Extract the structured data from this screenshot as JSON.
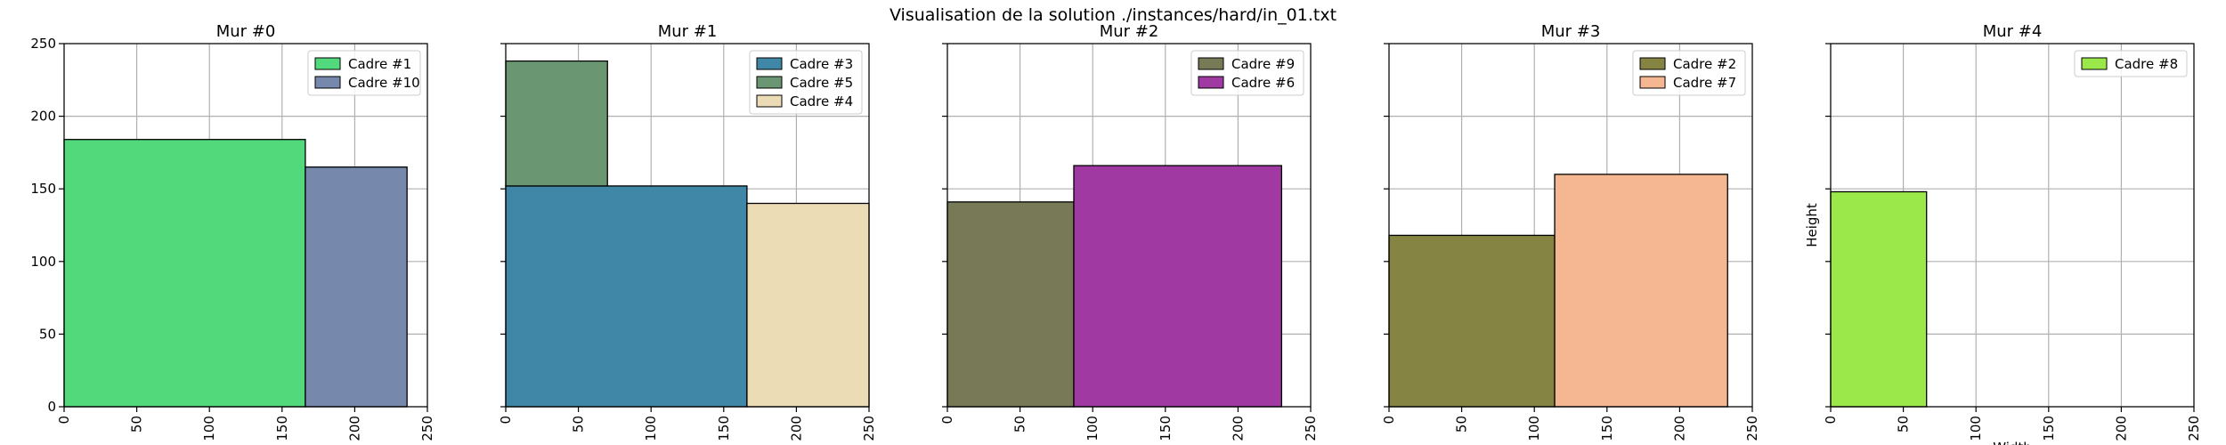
{
  "title": "Visualisation de la solution ./instances/hard/in_01.txt",
  "chart_data": [
    {
      "type": "bar",
      "title": "Mur #0",
      "xlim": [
        0,
        250
      ],
      "ylim": [
        0,
        250
      ],
      "xticks": [
        0,
        50,
        100,
        150,
        200,
        250
      ],
      "yticks": [
        0,
        50,
        100,
        150,
        200,
        250
      ],
      "show_ytick_labels": true,
      "grid": true,
      "legend": "top-right",
      "xlabel": "",
      "ylabel": "",
      "rects": [
        {
          "name": "Cadre #1",
          "x": 0,
          "y": 0,
          "w": 166,
          "h": 184,
          "color": "#52d97c"
        },
        {
          "name": "Cadre #10",
          "x": 166,
          "y": 0,
          "w": 70,
          "h": 165,
          "color": "#7689ac"
        }
      ]
    },
    {
      "type": "bar",
      "title": "Mur #1",
      "xlim": [
        0,
        250
      ],
      "ylim": [
        0,
        250
      ],
      "xticks": [
        0,
        50,
        100,
        150,
        200,
        250
      ],
      "yticks": [
        0,
        50,
        100,
        150,
        200,
        250
      ],
      "show_ytick_labels": false,
      "grid": true,
      "legend": "top-right",
      "xlabel": "",
      "ylabel": "",
      "rects": [
        {
          "name": "Cadre #3",
          "x": 0,
          "y": 0,
          "w": 166,
          "h": 152,
          "color": "#4086a6"
        },
        {
          "name": "Cadre #5",
          "x": 0,
          "y": 152,
          "w": 70,
          "h": 86,
          "color": "#6a9672"
        },
        {
          "name": "Cadre #4",
          "x": 166,
          "y": 0,
          "w": 84,
          "h": 140,
          "color": "#ecdcb6"
        }
      ]
    },
    {
      "type": "bar",
      "title": "Mur #2",
      "xlim": [
        0,
        250
      ],
      "ylim": [
        0,
        250
      ],
      "xticks": [
        0,
        50,
        100,
        150,
        200,
        250
      ],
      "yticks": [
        0,
        50,
        100,
        150,
        200,
        250
      ],
      "show_ytick_labels": false,
      "grid": true,
      "legend": "top-right",
      "xlabel": "",
      "ylabel": "",
      "rects": [
        {
          "name": "Cadre #9",
          "x": 0,
          "y": 0,
          "w": 87,
          "h": 141,
          "color": "#787957"
        },
        {
          "name": "Cadre #6",
          "x": 87,
          "y": 0,
          "w": 143,
          "h": 166,
          "color": "#a03aa2"
        }
      ]
    },
    {
      "type": "bar",
      "title": "Mur #3",
      "xlim": [
        0,
        250
      ],
      "ylim": [
        0,
        250
      ],
      "xticks": [
        0,
        50,
        100,
        150,
        200,
        250
      ],
      "yticks": [
        0,
        50,
        100,
        150,
        200,
        250
      ],
      "show_ytick_labels": false,
      "grid": true,
      "legend": "top-right",
      "xlabel": "",
      "ylabel": "",
      "rects": [
        {
          "name": "Cadre #2",
          "x": 0,
          "y": 0,
          "w": 114,
          "h": 118,
          "color": "#858443"
        },
        {
          "name": "Cadre #7",
          "x": 114,
          "y": 0,
          "w": 119,
          "h": 160,
          "color": "#f5b692"
        }
      ]
    },
    {
      "type": "bar",
      "title": "Mur #4",
      "xlim": [
        0,
        250
      ],
      "ylim": [
        0,
        250
      ],
      "xticks": [
        0,
        50,
        100,
        150,
        200,
        250
      ],
      "yticks": [
        0,
        50,
        100,
        150,
        200,
        250
      ],
      "show_ytick_labels": false,
      "grid": true,
      "legend": "top-right",
      "xlabel": "Width",
      "ylabel": "Height",
      "rects": [
        {
          "name": "Cadre #8",
          "x": 0,
          "y": 0,
          "w": 66,
          "h": 148,
          "color": "#9be84a"
        }
      ]
    }
  ]
}
